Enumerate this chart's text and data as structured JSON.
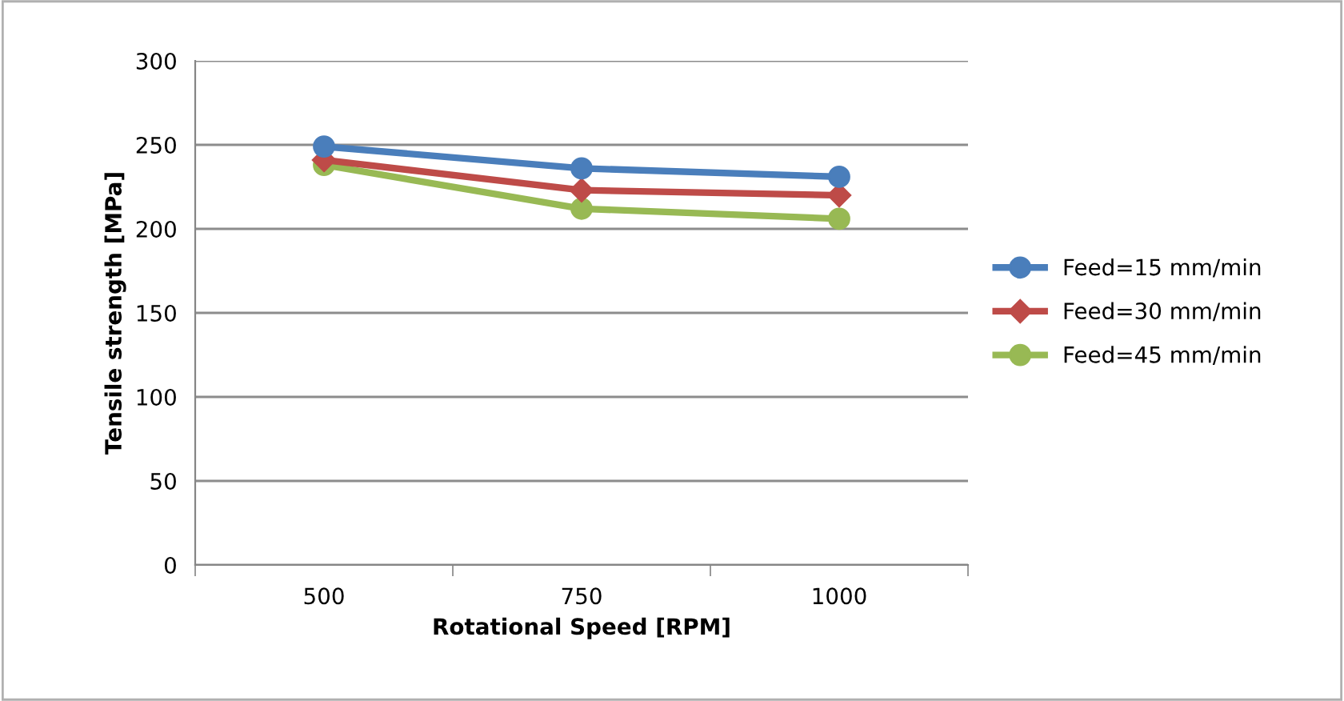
{
  "chart_data": {
    "type": "line",
    "xlabel": "Rotational Speed [RPM]",
    "ylabel": "Tensile strength [MPa]",
    "categories": [
      "500",
      "750",
      "1000"
    ],
    "series": [
      {
        "name": "Feed=15 mm/min",
        "color": "#4a7ebb",
        "marker": "circle",
        "values": [
          249,
          236,
          231
        ]
      },
      {
        "name": "Feed=30 mm/min",
        "color": "#be4b48",
        "marker": "diamond",
        "values": [
          241,
          223,
          220
        ]
      },
      {
        "name": "Feed=45 mm/min",
        "color": "#98b954",
        "marker": "circle",
        "values": [
          238,
          212,
          206
        ]
      }
    ],
    "ylim": [
      0,
      300
    ],
    "yticks": [
      0,
      50,
      100,
      150,
      200,
      250,
      300
    ],
    "grid": "y",
    "legend": "right",
    "line_style": "solid"
  }
}
